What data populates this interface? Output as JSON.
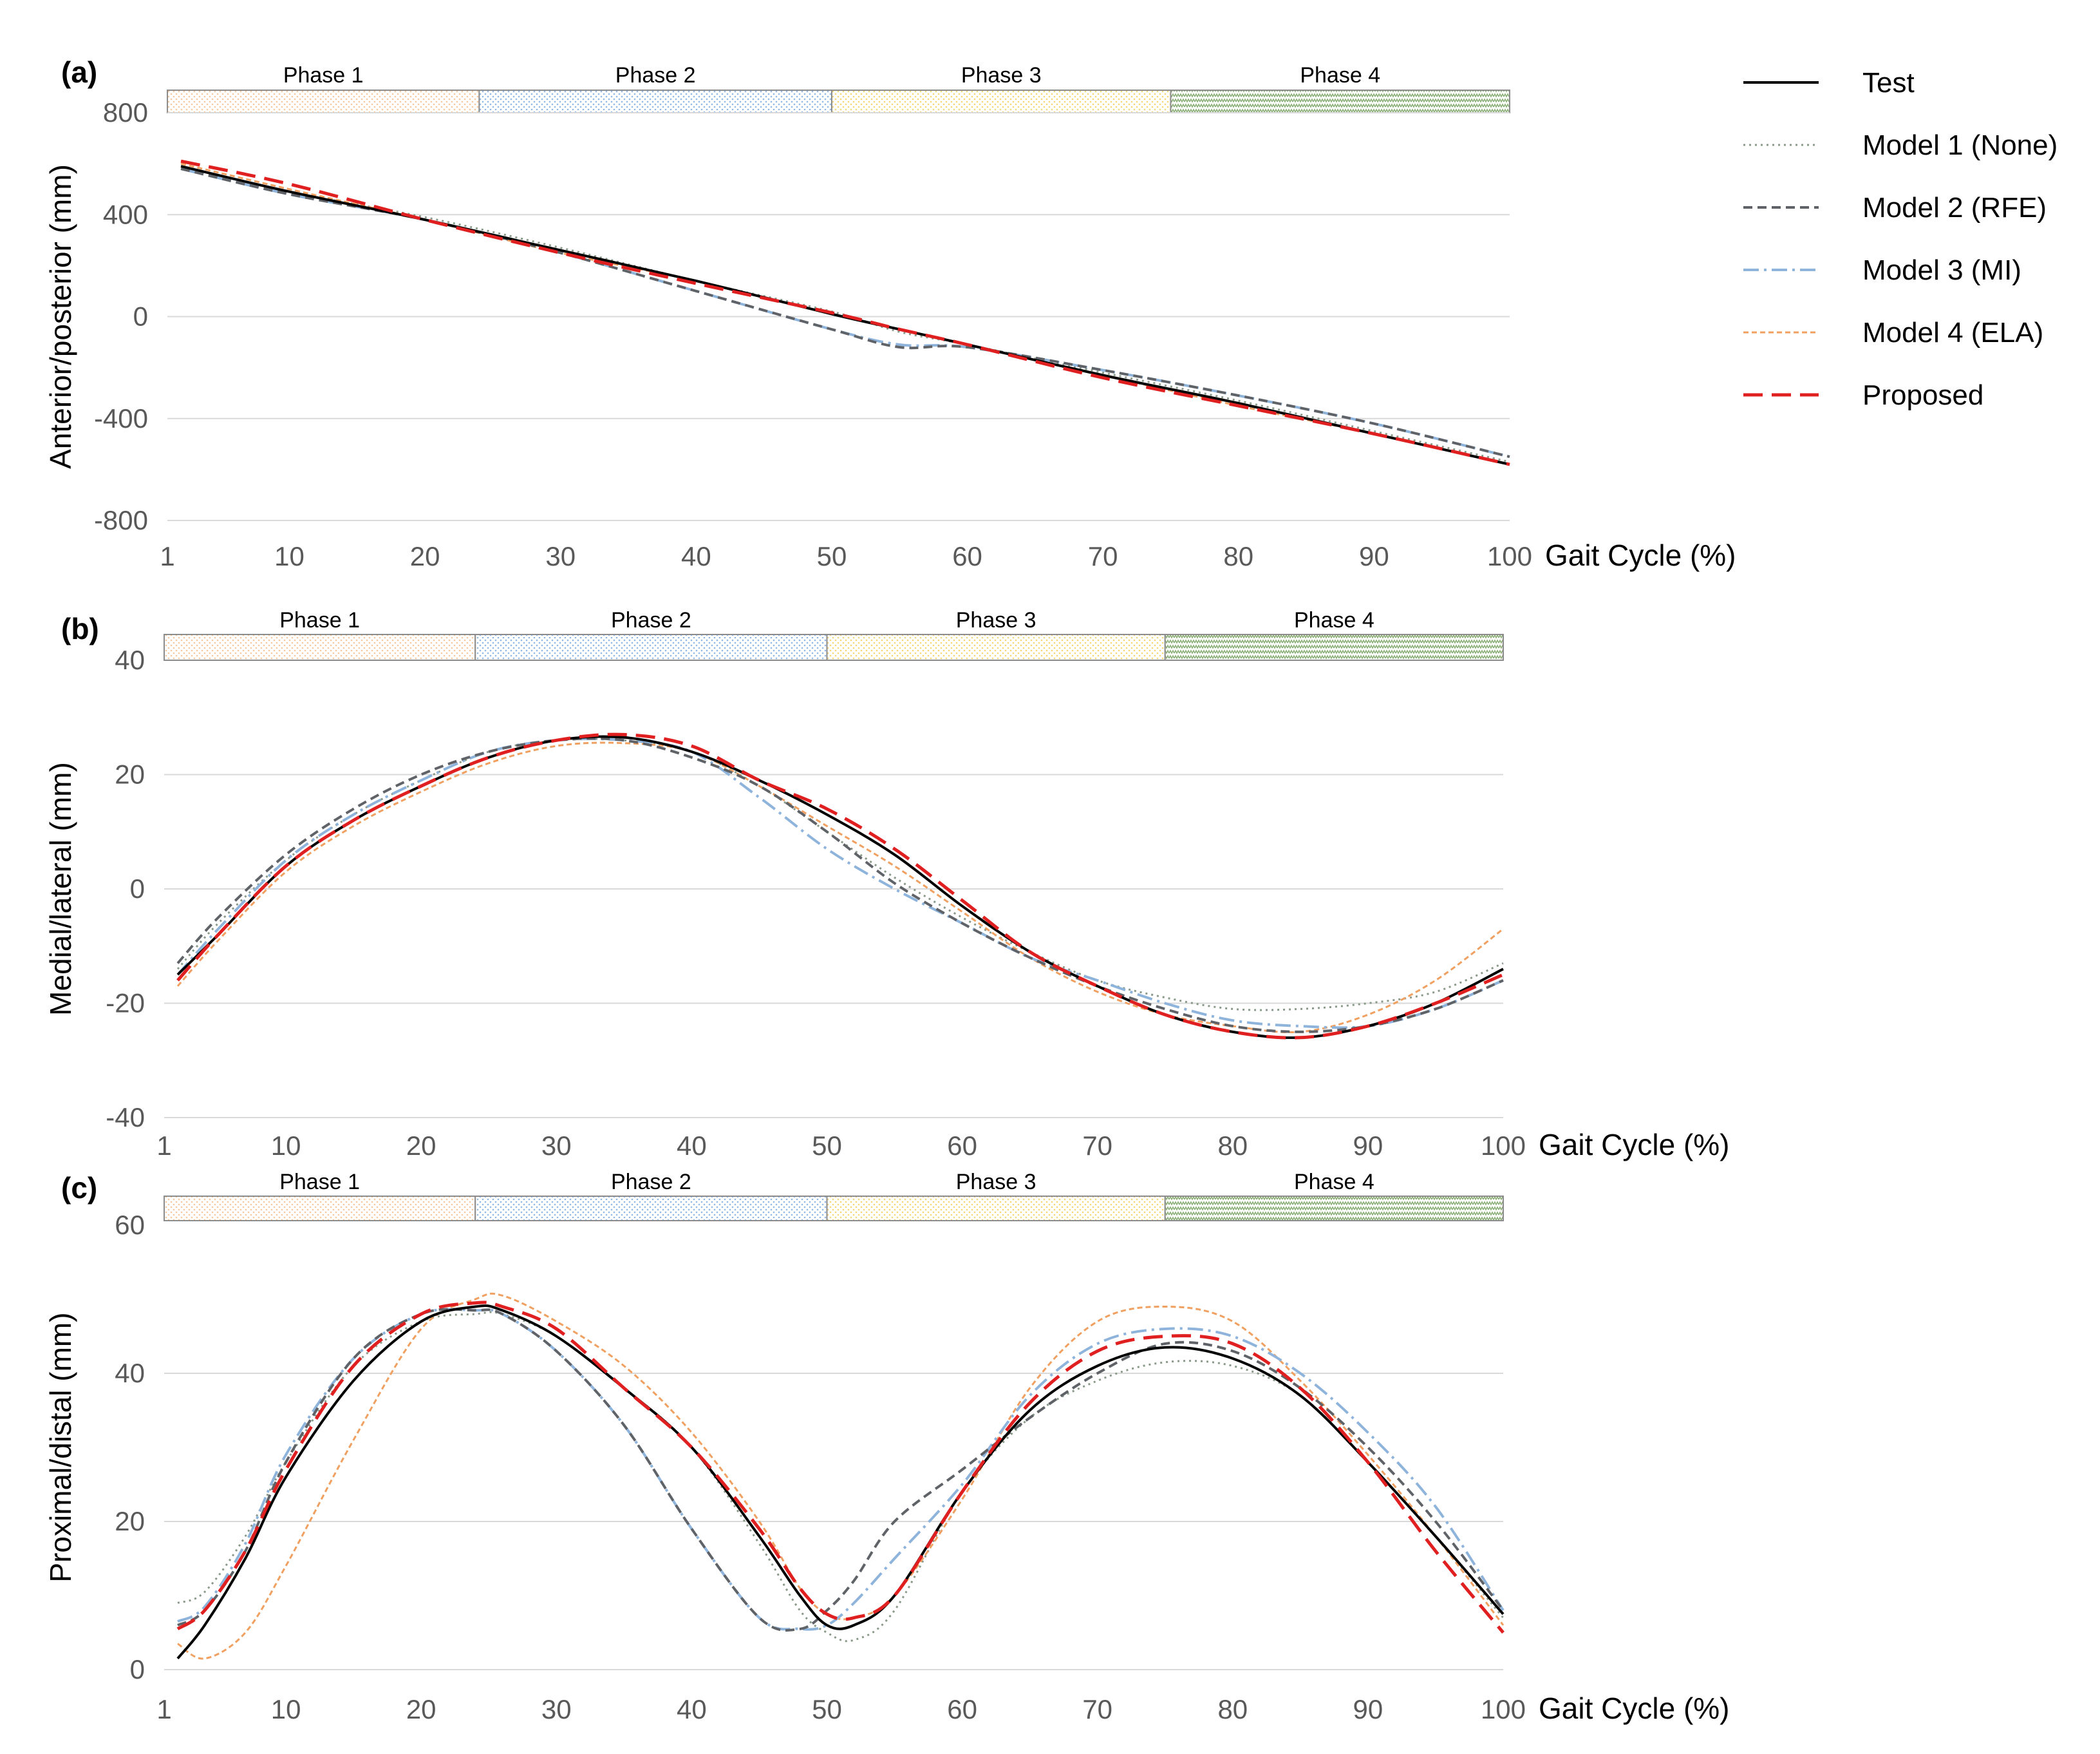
{
  "chart_data": [
    {
      "type": "line",
      "panel_label": "(a)",
      "title": "",
      "xlabel": "Gait Cycle (%)",
      "ylabel": "Anterior/posterior (mm)",
      "xlim": [
        1,
        100
      ],
      "ylim": [
        -800,
        800
      ],
      "x_ticks": [
        "1",
        "10",
        "20",
        "30",
        "40",
        "50",
        "60",
        "70",
        "80",
        "90",
        "100"
      ],
      "y_ticks": [
        "800",
        "400",
        "0",
        "-400",
        "-800"
      ],
      "grid": true,
      "phases": [
        {
          "label": "Phase 1",
          "start": 1,
          "end": 24,
          "color": "#f6c9a0"
        },
        {
          "label": "Phase 2",
          "start": 24,
          "end": 50,
          "color": "#8fb8e3"
        },
        {
          "label": "Phase 3",
          "start": 50,
          "end": 75,
          "color": "#f2d777"
        },
        {
          "label": "Phase 4",
          "start": 75,
          "end": 100,
          "color": "#8fb07a"
        }
      ],
      "x": [
        2,
        10,
        20,
        30,
        40,
        50,
        55,
        60,
        70,
        80,
        90,
        100
      ],
      "series": [
        {
          "name": "Test",
          "values": [
            590,
            490,
            380,
            260,
            140,
            10,
            -50,
            -110,
            -230,
            -340,
            -460,
            -580
          ]
        },
        {
          "name": "Model 1 (None)",
          "values": [
            590,
            490,
            390,
            270,
            140,
            20,
            -60,
            -110,
            -220,
            -330,
            -450,
            -570
          ]
        },
        {
          "name": "Model 2 (RFE)",
          "values": [
            580,
            480,
            380,
            250,
            100,
            -50,
            -120,
            -120,
            -210,
            -310,
            -420,
            -550
          ]
        },
        {
          "name": "Model 3 (MI)",
          "values": [
            580,
            480,
            380,
            250,
            100,
            -50,
            -110,
            -120,
            -210,
            -310,
            -420,
            -550
          ]
        },
        {
          "name": "Model 4 (ELA)",
          "values": [
            600,
            500,
            380,
            250,
            140,
            10,
            -50,
            -110,
            -230,
            -350,
            -460,
            -580
          ]
        },
        {
          "name": "Proposed",
          "values": [
            610,
            520,
            380,
            250,
            130,
            15,
            -50,
            -110,
            -240,
            -350,
            -460,
            -580
          ]
        }
      ]
    },
    {
      "type": "line",
      "panel_label": "(b)",
      "title": "",
      "xlabel": "Gait Cycle (%)",
      "ylabel": "Medial/lateral (mm)",
      "xlim": [
        1,
        100
      ],
      "ylim": [
        -40,
        40
      ],
      "x_ticks": [
        "1",
        "10",
        "20",
        "30",
        "40",
        "50",
        "60",
        "70",
        "80",
        "90",
        "100"
      ],
      "y_ticks": [
        "40",
        "20",
        "0",
        "-20",
        "-40"
      ],
      "grid": true,
      "phases": [
        {
          "label": "Phase 1",
          "start": 1,
          "end": 24,
          "color": "#f6c9a0"
        },
        {
          "label": "Phase 2",
          "start": 24,
          "end": 50,
          "color": "#8fb8e3"
        },
        {
          "label": "Phase 3",
          "start": 50,
          "end": 75,
          "color": "#f2d777"
        },
        {
          "label": "Phase 4",
          "start": 75,
          "end": 100,
          "color": "#8fb07a"
        }
      ],
      "x": [
        2,
        5,
        10,
        15,
        20,
        25,
        30,
        35,
        40,
        45,
        50,
        55,
        60,
        65,
        70,
        75,
        80,
        85,
        90,
        95,
        100
      ],
      "series": [
        {
          "name": "Test",
          "values": [
            -15,
            -8,
            4,
            12,
            18,
            23,
            26,
            26.5,
            24,
            19,
            13,
            6,
            -3,
            -11,
            -17,
            -22,
            -25,
            -26,
            -24,
            -20,
            -14
          ]
        },
        {
          "name": "Model 1 (None)",
          "values": [
            -14,
            -6,
            5,
            13,
            19,
            24,
            26,
            26,
            24,
            18,
            10,
            2,
            -5,
            -11,
            -16,
            -19,
            -21,
            -21,
            -20,
            -18,
            -13
          ]
        },
        {
          "name": "Model 2 (RFE)",
          "values": [
            -13,
            -5,
            6,
            14,
            20,
            24,
            26,
            26,
            23,
            18,
            10,
            1,
            -6,
            -12,
            -17,
            -21,
            -24,
            -25,
            -24,
            -21,
            -16
          ]
        },
        {
          "name": "Model 3 (MI)",
          "values": [
            -15,
            -7,
            5,
            13,
            19,
            24,
            26,
            26,
            24,
            16,
            7,
            0,
            -6,
            -12,
            -16,
            -20,
            -23,
            -24,
            -24,
            -21,
            -16
          ]
        },
        {
          "name": "Model 4 (ELA)",
          "values": [
            -17,
            -9,
            3,
            11,
            17,
            22,
            25,
            25.5,
            24,
            18,
            11,
            4,
            -4,
            -12,
            -18,
            -22,
            -24,
            -25,
            -22,
            -16,
            -7
          ]
        },
        {
          "name": "Proposed",
          "values": [
            -16,
            -8,
            4,
            12,
            18,
            23,
            26,
            27,
            25,
            19,
            14,
            7,
            -2,
            -11,
            -17,
            -22,
            -25,
            -26,
            -24,
            -20,
            -15
          ]
        }
      ]
    },
    {
      "type": "line",
      "panel_label": "(c)",
      "title": "",
      "xlabel": "Gait Cycle (%)",
      "ylabel": "Proximal/distal (mm)",
      "xlim": [
        1,
        100
      ],
      "ylim": [
        0,
        60
      ],
      "x_ticks": [
        "1",
        "10",
        "20",
        "30",
        "40",
        "50",
        "60",
        "70",
        "80",
        "90",
        "100"
      ],
      "y_ticks": [
        "60",
        "40",
        "20",
        "0"
      ],
      "grid": true,
      "phases": [
        {
          "label": "Phase 1",
          "start": 1,
          "end": 24,
          "color": "#f6c9a0"
        },
        {
          "label": "Phase 2",
          "start": 24,
          "end": 50,
          "color": "#8fb8e3"
        },
        {
          "label": "Phase 3",
          "start": 50,
          "end": 75,
          "color": "#f2d777"
        },
        {
          "label": "Phase 4",
          "start": 75,
          "end": 100,
          "color": "#8fb07a"
        }
      ],
      "x": [
        2,
        4,
        7,
        10,
        15,
        20,
        24,
        26,
        30,
        35,
        40,
        45,
        48,
        50,
        52,
        55,
        60,
        65,
        70,
        75,
        80,
        85,
        90,
        95,
        100
      ],
      "series": [
        {
          "name": "Test",
          "values": [
            1.5,
            6,
            15,
            26,
            39,
            47,
            49,
            48.5,
            45,
            38,
            30,
            18,
            10,
            6,
            6,
            10,
            24,
            35,
            41,
            43.5,
            42,
            37,
            28,
            18,
            7.5
          ]
        },
        {
          "name": "Model 1 (None)",
          "values": [
            9,
            10.5,
            18,
            28,
            41,
            47,
            48,
            48,
            45,
            38,
            30,
            17,
            8,
            5,
            4,
            8,
            24,
            34,
            39,
            41.5,
            41,
            37,
            28,
            18,
            7
          ]
        },
        {
          "name": "Model 2 (RFE)",
          "values": [
            6,
            8,
            16,
            28,
            42,
            48,
            48.5,
            48,
            43,
            33,
            19,
            7,
            5.5,
            8,
            12,
            20,
            27,
            34,
            40,
            44,
            43,
            38,
            30,
            20,
            8
          ]
        },
        {
          "name": "Model 3 (MI)",
          "values": [
            6.5,
            8.5,
            17,
            29,
            42,
            48,
            48.5,
            48,
            43,
            33,
            19,
            7,
            5.5,
            6,
            9,
            15,
            25,
            37,
            44,
            46,
            45,
            40,
            32,
            22,
            8
          ]
        },
        {
          "name": "Model 4 (ELA)",
          "values": [
            3.5,
            1.5,
            5,
            14,
            31,
            46,
            50,
            50.5,
            47,
            41,
            32,
            20,
            11,
            7.5,
            7,
            10,
            23,
            38,
            47,
            49,
            47,
            39,
            29,
            18,
            6
          ]
        },
        {
          "name": "Proposed",
          "values": [
            5.5,
            8,
            16,
            27,
            41,
            48,
            49.5,
            49,
            46,
            38,
            30,
            19,
            11,
            7.5,
            7,
            10,
            24,
            36,
            43,
            45,
            44,
            38,
            28,
            16,
            5
          ]
        }
      ]
    }
  ],
  "legend": [
    {
      "name": "Test",
      "color": "#000000",
      "dash": "solid",
      "width": 4
    },
    {
      "name": "Model 1 (None)",
      "color": "#8a9a8a",
      "dash": "dotted",
      "width": 3
    },
    {
      "name": "Model 2 (RFE)",
      "color": "#5f6368",
      "dash": "dashed",
      "width": 4
    },
    {
      "name": "Model 3 (MI)",
      "color": "#8fb4dc",
      "dash": "dashdot",
      "width": 4
    },
    {
      "name": "Model 4 (ELA)",
      "color": "#f0a060",
      "dash": "fine",
      "width": 3
    },
    {
      "name": "Proposed",
      "color": "#e02020",
      "dash": "longdash",
      "width": 5
    }
  ]
}
